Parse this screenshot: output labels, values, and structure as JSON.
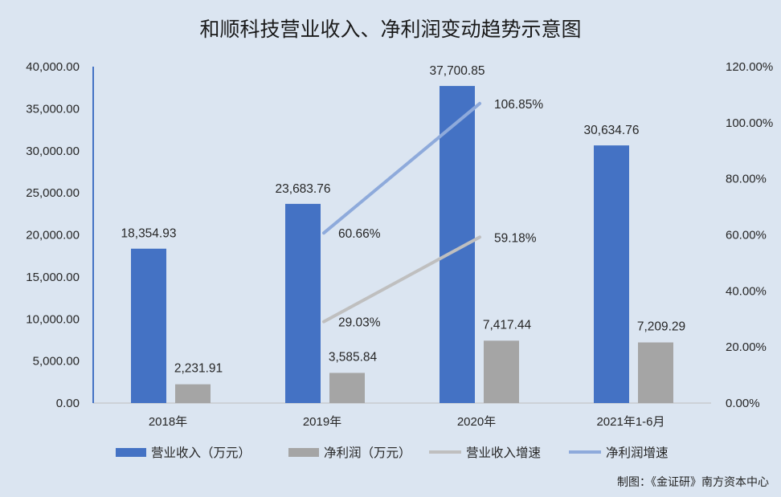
{
  "chart_data": {
    "type": "bar",
    "title": "和顺科技营业收入、净利润变动趋势示意图",
    "categories": [
      "2018年",
      "2019年",
      "2020年",
      "2021年1-6月"
    ],
    "series": [
      {
        "name": "营业收入（万元）",
        "kind": "bar",
        "axis": "left",
        "color": "#4472c4",
        "values": [
          18354.93,
          23683.76,
          37700.85,
          30634.76
        ],
        "labels": [
          "18,354.93",
          "23,683.76",
          "37,700.85",
          "30,634.76"
        ]
      },
      {
        "name": "净利润（万元）",
        "kind": "bar",
        "axis": "left",
        "color": "#a5a5a5",
        "values": [
          2231.91,
          3585.84,
          7417.44,
          7209.29
        ],
        "labels": [
          "2,231.91",
          "3,585.84",
          "7,417.44",
          "7,209.29"
        ]
      },
      {
        "name": "营业收入增速",
        "kind": "line",
        "axis": "right",
        "color": "#bfbfbf",
        "values": [
          null,
          29.03,
          59.18,
          null
        ],
        "labels": [
          null,
          "29.03%",
          "59.18%",
          null
        ]
      },
      {
        "name": "净利润增速",
        "kind": "line",
        "axis": "right",
        "color": "#8eaadb",
        "values": [
          null,
          60.66,
          106.85,
          null
        ],
        "labels": [
          null,
          "60.66%",
          "106.85%",
          null
        ]
      }
    ],
    "y_left": {
      "range": [
        0,
        40000
      ],
      "ticks": [
        "0.00",
        "5,000.00",
        "10,000.00",
        "15,000.00",
        "20,000.00",
        "25,000.00",
        "30,000.00",
        "35,000.00",
        "40,000.00"
      ]
    },
    "y_right": {
      "range": [
        0,
        120
      ],
      "ticks": [
        "0.00%",
        "20.00%",
        "40.00%",
        "60.00%",
        "80.00%",
        "100.00%",
        "120.00%"
      ]
    },
    "grid": false,
    "legend_position": "bottom"
  },
  "credit": "制图：《金证研》南方资本中心",
  "colors": {
    "background": "#dbe5f1",
    "axis_left": "#4472c4",
    "baseline": "#bfbfbf"
  }
}
